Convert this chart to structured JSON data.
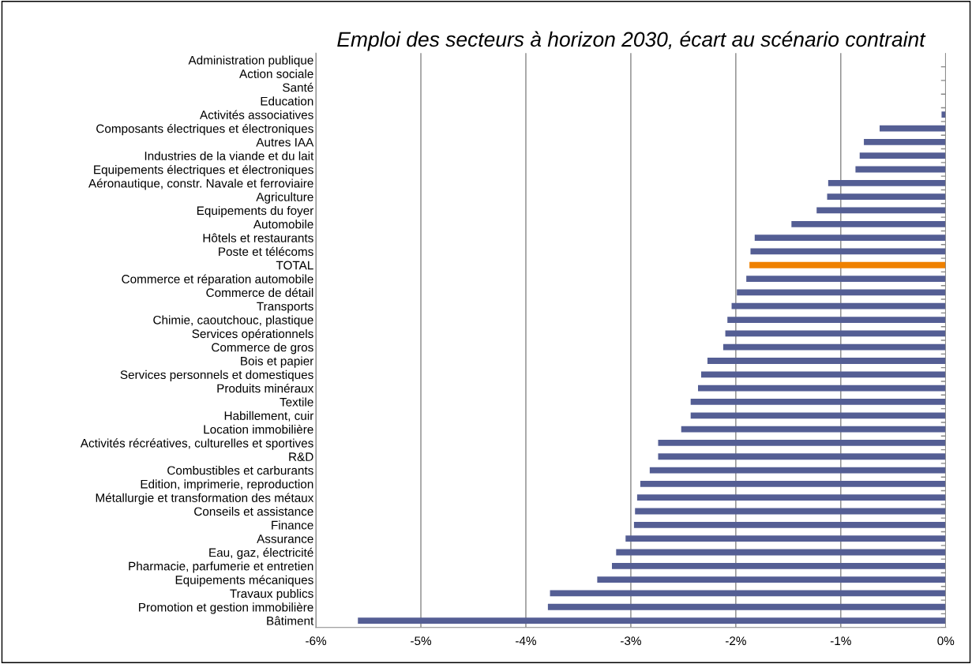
{
  "chart_data": {
    "type": "bar",
    "orientation": "horizontal",
    "title": "Emploi des secteurs à horizon 2030, écart au scénario contraint",
    "categories": [
      "Administration publique",
      "Action sociale",
      "Santé",
      "Education",
      "Activités associatives",
      "Composants électriques et électroniques",
      "Autres IAA",
      "Industries de la viande et du lait",
      "Equipements électriques et électroniques",
      "Aéronautique, constr. Navale et ferroviaire",
      "Agriculture",
      "Equipements du foyer",
      "Automobile",
      "Hôtels et restaurants",
      "Poste et télécoms",
      "TOTAL",
      "Commerce et réparation automobile",
      "Commerce de détail",
      "Transports",
      "Chimie, caoutchouc, plastique",
      "Services opérationnels",
      "Commerce de gros",
      "Bois et papier",
      "Services personnels et domestiques",
      "Produits minéraux",
      "Textile",
      "Habillement, cuir",
      "Location immobilière",
      "Activités récréatives, culturelles et sportives",
      "R&D",
      "Combustibles et carburants",
      "Edition, imprimerie, reproduction",
      "Métallurgie et transformation des métaux",
      "Conseils et assistance",
      "Finance",
      "Assurance",
      "Eau, gaz, électricité",
      "Pharmacie, parfumerie et entretien",
      "Equipements mécaniques",
      "Travaux publics",
      "Promotion et gestion immobilière",
      "Bâtiment"
    ],
    "values": [
      0,
      0,
      0,
      0,
      -0.04,
      -0.63,
      -0.78,
      -0.82,
      -0.86,
      -1.12,
      -1.13,
      -1.23,
      -1.47,
      -1.82,
      -1.86,
      -1.87,
      -1.9,
      -1.99,
      -2.04,
      -2.08,
      -2.1,
      -2.12,
      -2.27,
      -2.33,
      -2.36,
      -2.43,
      -2.43,
      -2.52,
      -2.74,
      -2.74,
      -2.82,
      -2.91,
      -2.94,
      -2.96,
      -2.97,
      -3.05,
      -3.14,
      -3.18,
      -3.32,
      -3.77,
      -3.79,
      -5.6
    ],
    "colors": [
      "#545e94",
      "#545e94",
      "#545e94",
      "#545e94",
      "#545e94",
      "#545e94",
      "#545e94",
      "#545e94",
      "#545e94",
      "#545e94",
      "#545e94",
      "#545e94",
      "#545e94",
      "#545e94",
      "#545e94",
      "#ef8100",
      "#545e94",
      "#545e94",
      "#545e94",
      "#545e94",
      "#545e94",
      "#545e94",
      "#545e94",
      "#545e94",
      "#545e94",
      "#545e94",
      "#545e94",
      "#545e94",
      "#545e94",
      "#545e94",
      "#545e94",
      "#545e94",
      "#545e94",
      "#545e94",
      "#545e94",
      "#545e94",
      "#545e94",
      "#545e94",
      "#545e94",
      "#545e94",
      "#545e94",
      "#545e94"
    ],
    "xlim": [
      -6,
      0
    ],
    "xticks": [
      {
        "value": -6,
        "label": "-6%"
      },
      {
        "value": -5,
        "label": "-5%"
      },
      {
        "value": -4,
        "label": "-4%"
      },
      {
        "value": -3,
        "label": "-3%"
      },
      {
        "value": -2,
        "label": "-2%"
      },
      {
        "value": -1,
        "label": "-1%"
      },
      {
        "value": 0,
        "label": "0%"
      }
    ],
    "grid": "x",
    "legend": false
  }
}
